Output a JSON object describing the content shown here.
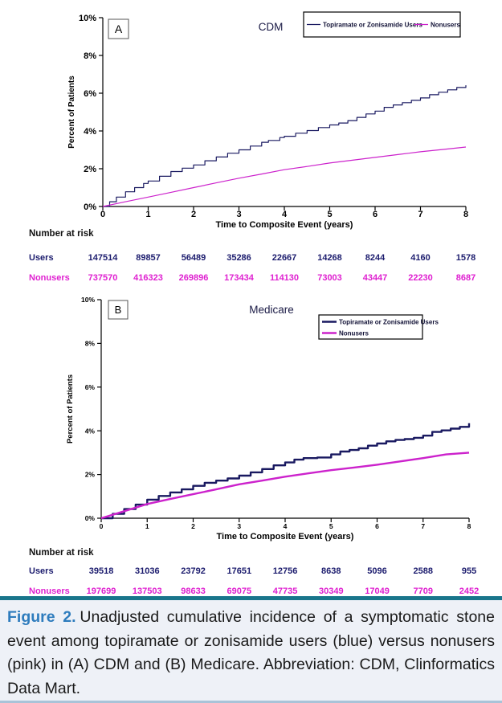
{
  "colors": {
    "users_line": "#191960",
    "nonusers_line": "#cc22cc",
    "users_text": "#1c1c6e",
    "nonusers_text": "#df1fd0",
    "axis": "#000000",
    "title_text": "#1a1a45",
    "legend_text": "#101035",
    "caption_accent": "#2e7cbd",
    "caption_text": "#1a1a1a",
    "rule_top": "#19758b",
    "rule_bottom": "#a9c3d8",
    "caption_bg": "#eef1f7"
  },
  "chart_data": [
    {
      "type": "line",
      "panel_label": "A",
      "title": "CDM",
      "xlabel": "Time to Composite Event (years)",
      "ylabel": "Percent of Patients",
      "xlim": [
        0,
        8
      ],
      "ylim": [
        0,
        10
      ],
      "xticks": [
        0,
        1,
        2,
        3,
        4,
        5,
        6,
        7,
        8
      ],
      "yticks": [
        [
          0,
          "0%"
        ],
        [
          2,
          "2%"
        ],
        [
          4,
          "4%"
        ],
        [
          6,
          "6%"
        ],
        [
          8,
          "8%"
        ],
        [
          10,
          "10%"
        ]
      ],
      "legend_position": "top-right-horizontal",
      "grid": false,
      "series": [
        {
          "name": "Topiramate or Zonisamide Users",
          "color": "#191960",
          "style": "step",
          "points": [
            [
              0,
              0
            ],
            [
              0.15,
              0.25
            ],
            [
              0.3,
              0.5
            ],
            [
              0.5,
              0.78
            ],
            [
              0.7,
              1.0
            ],
            [
              0.9,
              1.22
            ],
            [
              1,
              1.35
            ],
            [
              1.25,
              1.6
            ],
            [
              1.5,
              1.85
            ],
            [
              1.75,
              2.03
            ],
            [
              2,
              2.2
            ],
            [
              2.25,
              2.42
            ],
            [
              2.5,
              2.62
            ],
            [
              2.75,
              2.82
            ],
            [
              3,
              3.0
            ],
            [
              3.25,
              3.2
            ],
            [
              3.5,
              3.4
            ],
            [
              3.65,
              3.5
            ],
            [
              3.9,
              3.65
            ],
            [
              4,
              3.72
            ],
            [
              4.25,
              3.88
            ],
            [
              4.5,
              4.02
            ],
            [
              4.75,
              4.18
            ],
            [
              5,
              4.32
            ],
            [
              5.2,
              4.42
            ],
            [
              5.4,
              4.55
            ],
            [
              5.6,
              4.72
            ],
            [
              5.8,
              4.9
            ],
            [
              6,
              5.05
            ],
            [
              6.2,
              5.25
            ],
            [
              6.4,
              5.38
            ],
            [
              6.6,
              5.5
            ],
            [
              6.8,
              5.62
            ],
            [
              7,
              5.75
            ],
            [
              7.2,
              5.92
            ],
            [
              7.4,
              6.05
            ],
            [
              7.6,
              6.18
            ],
            [
              7.8,
              6.3
            ],
            [
              8,
              6.42
            ]
          ]
        },
        {
          "name": "Nonusers",
          "color": "#cc22cc",
          "style": "linear",
          "points": [
            [
              0,
              0
            ],
            [
              0.5,
              0.25
            ],
            [
              1,
              0.5
            ],
            [
              1.5,
              0.75
            ],
            [
              2,
              1.0
            ],
            [
              2.5,
              1.25
            ],
            [
              3,
              1.5
            ],
            [
              3.5,
              1.72
            ],
            [
              4,
              1.95
            ],
            [
              4.5,
              2.12
            ],
            [
              5,
              2.3
            ],
            [
              5.5,
              2.45
            ],
            [
              6,
              2.6
            ],
            [
              6.5,
              2.75
            ],
            [
              7,
              2.9
            ],
            [
              7.5,
              3.02
            ],
            [
              8,
              3.15
            ]
          ]
        }
      ],
      "number_at_risk": {
        "heading": "Number at risk",
        "rows": [
          {
            "label": "Users",
            "color": "#1c1c6e",
            "values": [
              "147514",
              "89857",
              "56489",
              "35286",
              "22667",
              "14268",
              "8244",
              "4160",
              "1578"
            ]
          },
          {
            "label": "Nonusers",
            "color": "#df1fd0",
            "values": [
              "737570",
              "416323",
              "269896",
              "173434",
              "114130",
              "73003",
              "43447",
              "22230",
              "8687"
            ]
          }
        ]
      }
    },
    {
      "type": "line",
      "panel_label": "B",
      "title": "Medicare",
      "xlabel": "Time to Composite Event (years)",
      "ylabel": "Percent of Patients",
      "xlim": [
        0,
        8
      ],
      "ylim": [
        0,
        10
      ],
      "xticks": [
        0,
        1,
        2,
        3,
        4,
        5,
        6,
        7,
        8
      ],
      "yticks": [
        [
          0,
          "0%"
        ],
        [
          2,
          "2%"
        ],
        [
          4,
          "4%"
        ],
        [
          6,
          "6%"
        ],
        [
          8,
          "8%"
        ],
        [
          10,
          "10%"
        ]
      ],
      "legend_position": "top-right-vertical",
      "grid": false,
      "series": [
        {
          "name": "Topiramate or Zonisamide Users",
          "color": "#191960",
          "style": "step",
          "points": [
            [
              0,
              0
            ],
            [
              0.25,
              0.2
            ],
            [
              0.5,
              0.42
            ],
            [
              0.75,
              0.62
            ],
            [
              1,
              0.85
            ],
            [
              1.25,
              1.02
            ],
            [
              1.5,
              1.18
            ],
            [
              1.75,
              1.32
            ],
            [
              2,
              1.48
            ],
            [
              2.25,
              1.62
            ],
            [
              2.5,
              1.72
            ],
            [
              2.75,
              1.82
            ],
            [
              3,
              1.95
            ],
            [
              3.25,
              2.1
            ],
            [
              3.5,
              2.25
            ],
            [
              3.75,
              2.42
            ],
            [
              4,
              2.55
            ],
            [
              4.2,
              2.68
            ],
            [
              4.4,
              2.75
            ],
            [
              4.7,
              2.78
            ],
            [
              5,
              2.92
            ],
            [
              5.2,
              3.05
            ],
            [
              5.4,
              3.12
            ],
            [
              5.6,
              3.2
            ],
            [
              5.8,
              3.32
            ],
            [
              6,
              3.42
            ],
            [
              6.2,
              3.52
            ],
            [
              6.4,
              3.58
            ],
            [
              6.6,
              3.62
            ],
            [
              6.8,
              3.68
            ],
            [
              7,
              3.78
            ],
            [
              7.2,
              3.95
            ],
            [
              7.4,
              4.02
            ],
            [
              7.6,
              4.1
            ],
            [
              7.8,
              4.18
            ],
            [
              8,
              4.35
            ]
          ]
        },
        {
          "name": "Nonusers",
          "color": "#cc22cc",
          "style": "linear",
          "points": [
            [
              0,
              0
            ],
            [
              0.5,
              0.32
            ],
            [
              1,
              0.65
            ],
            [
              1.5,
              0.88
            ],
            [
              2,
              1.1
            ],
            [
              2.5,
              1.32
            ],
            [
              3,
              1.55
            ],
            [
              3.5,
              1.72
            ],
            [
              4,
              1.9
            ],
            [
              4.5,
              2.05
            ],
            [
              5,
              2.2
            ],
            [
              5.5,
              2.32
            ],
            [
              6,
              2.45
            ],
            [
              6.5,
              2.6
            ],
            [
              7,
              2.75
            ],
            [
              7.5,
              2.92
            ],
            [
              8,
              3.0
            ]
          ]
        }
      ],
      "number_at_risk": {
        "heading": "Number at risk",
        "rows": [
          {
            "label": "Users",
            "color": "#1c1c6e",
            "values": [
              "39518",
              "31036",
              "23792",
              "17651",
              "12756",
              "8638",
              "5096",
              "2588",
              "955"
            ]
          },
          {
            "label": "Nonusers",
            "color": "#df1fd0",
            "values": [
              "197699",
              "137503",
              "98633",
              "69075",
              "47735",
              "30349",
              "17049",
              "7709",
              "2452"
            ]
          }
        ]
      }
    }
  ],
  "caption": {
    "label": "Figure 2.",
    "text": "Unadjusted cumulative incidence of a symptomatic stone event among topiramate or zonisamide users (blue) versus nonusers (pink) in (A) CDM and (B) Medicare. Abbreviation: CDM, Clinformatics Data Mart."
  }
}
